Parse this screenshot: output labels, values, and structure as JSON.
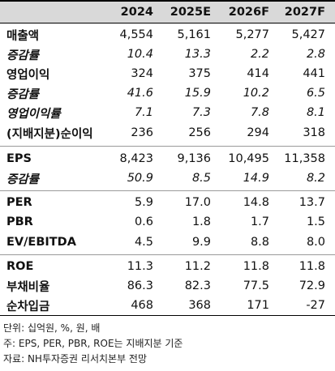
{
  "header": {
    "years": [
      "2024",
      "2025E",
      "2026F",
      "2027F"
    ]
  },
  "rows": [
    {
      "label": "매출액",
      "italic": false,
      "values": [
        "4,554",
        "5,161",
        "5,277",
        "5,427"
      ]
    },
    {
      "label": "증감률",
      "italic": true,
      "values": [
        "10.4",
        "13.3",
        "2.2",
        "2.8"
      ]
    },
    {
      "label": "영업이익",
      "italic": false,
      "values": [
        "324",
        "375",
        "414",
        "441"
      ]
    },
    {
      "label": "증감률",
      "italic": true,
      "values": [
        "41.6",
        "15.9",
        "10.2",
        "6.5"
      ]
    },
    {
      "label": "영업이익률",
      "italic": true,
      "values": [
        "7.1",
        "7.3",
        "7.8",
        "8.1"
      ]
    },
    {
      "label": "(지배지분)순이익",
      "italic": false,
      "values": [
        "236",
        "256",
        "294",
        "318"
      ]
    },
    {
      "label": "EPS",
      "italic": false,
      "values": [
        "8,423",
        "9,136",
        "10,495",
        "11,358"
      ]
    },
    {
      "label": "증감률",
      "italic": true,
      "values": [
        "50.9",
        "8.5",
        "14.9",
        "8.2"
      ]
    },
    {
      "label": "PER",
      "italic": false,
      "values": [
        "5.9",
        "17.0",
        "14.8",
        "13.7"
      ]
    },
    {
      "label": "PBR",
      "italic": false,
      "values": [
        "0.6",
        "1.8",
        "1.7",
        "1.5"
      ]
    },
    {
      "label": "EV/EBITDA",
      "italic": false,
      "values": [
        "4.5",
        "9.9",
        "8.8",
        "8.0"
      ]
    },
    {
      "label": "ROE",
      "italic": false,
      "values": [
        "11.3",
        "11.2",
        "11.8",
        "11.8"
      ]
    },
    {
      "label": "부채비율",
      "italic": false,
      "values": [
        "86.3",
        "82.3",
        "77.5",
        "72.9"
      ]
    },
    {
      "label": "순차입금",
      "italic": false,
      "values": [
        "468",
        "368",
        "171",
        "-27"
      ]
    }
  ],
  "notes": [
    "단위: 십억원, %, 원, 배",
    "주: EPS, PER, PBR, ROE는 지배지분 기준",
    "자료: NH투자증권 리서치본부 전망"
  ]
}
